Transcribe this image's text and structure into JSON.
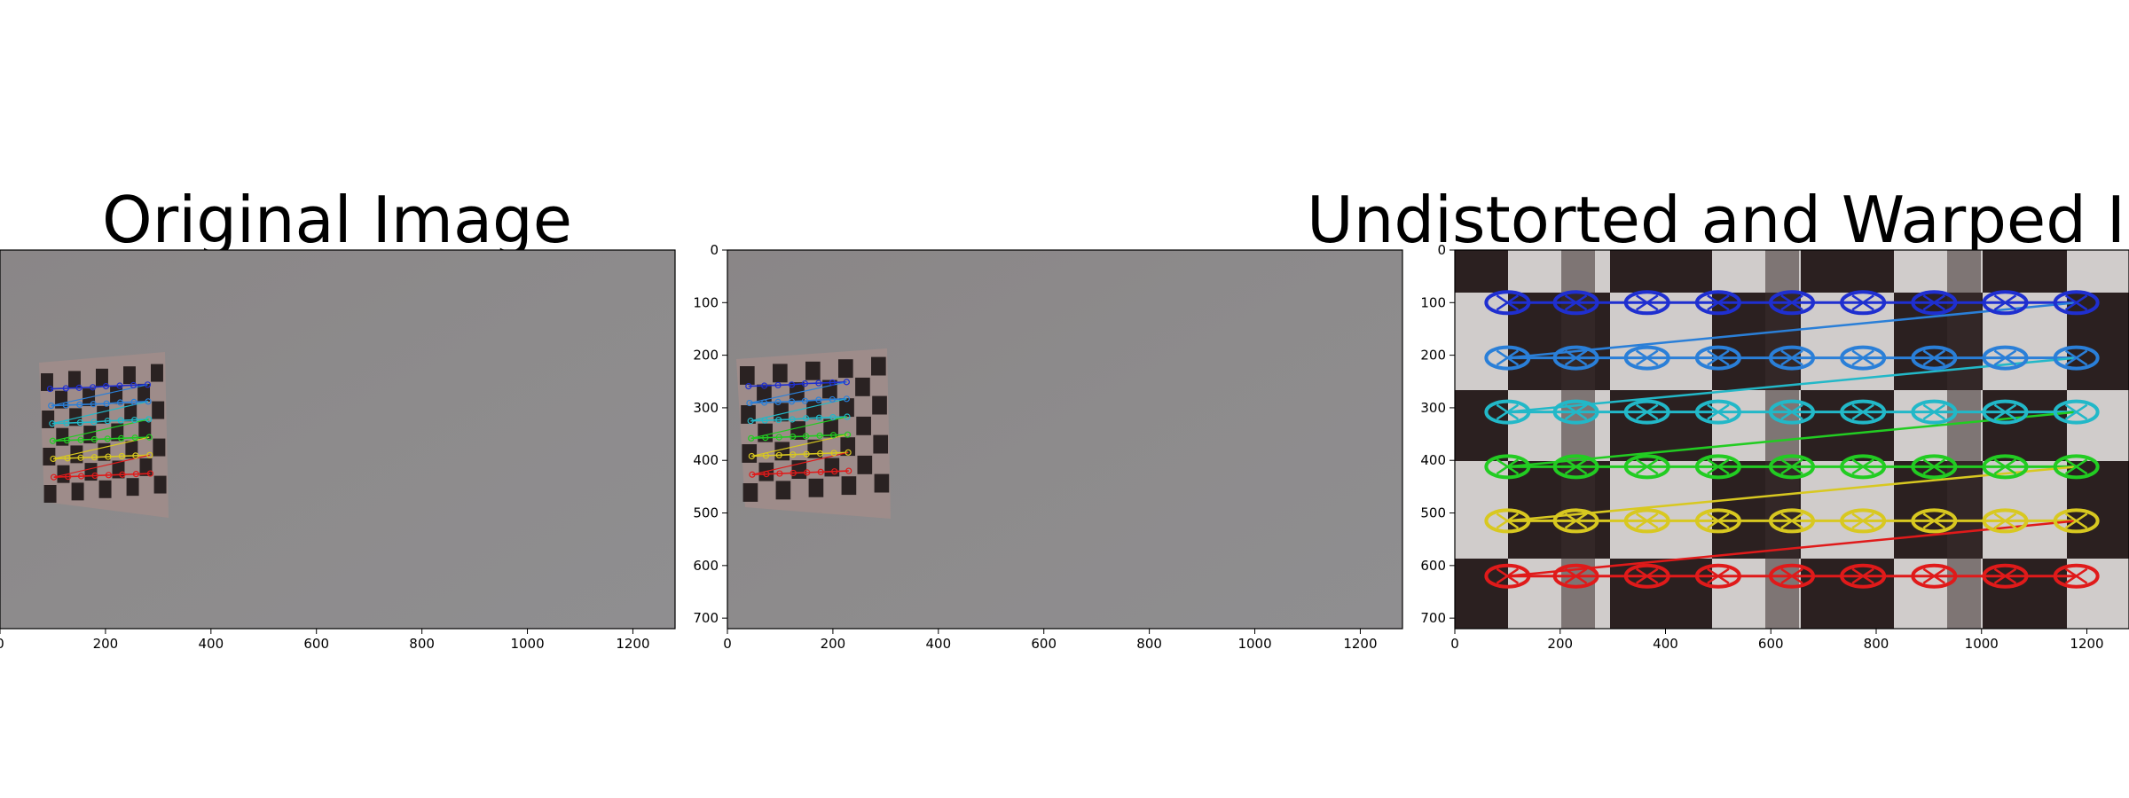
{
  "chart_data": [
    {
      "type": "image",
      "title": "Original Image",
      "xticks": [
        "0",
        "200",
        "400",
        "600",
        "800",
        "1000",
        "1200"
      ],
      "yticks": [],
      "xlim": [
        0,
        1280
      ],
      "ylim": [
        720,
        0
      ],
      "content": "photo of a gray wall with a small checkerboard calibration target on the left; detected chessboard corners drawn as colored polylines",
      "corner_rows": [
        {
          "color": "#1f2fd0",
          "points": [
            [
              95,
              264
            ],
            [
              125,
              263
            ],
            [
              150,
              262
            ],
            [
              176,
              261
            ],
            [
              201,
              259
            ],
            [
              227,
              258
            ],
            [
              253,
              257
            ],
            [
              280,
              256
            ]
          ]
        },
        {
          "color": "#2a7fd8",
          "points": [
            [
              97,
              296
            ],
            [
              125,
              295
            ],
            [
              151,
              294
            ],
            [
              177,
              293
            ],
            [
              202,
              292
            ],
            [
              228,
              290
            ],
            [
              254,
              289
            ],
            [
              281,
              288
            ]
          ]
        },
        {
          "color": "#22b8c8",
          "points": [
            [
              99,
              330
            ],
            [
              126,
              329
            ],
            [
              152,
              328
            ],
            [
              178,
              327
            ],
            [
              204,
              325
            ],
            [
              229,
              324
            ],
            [
              255,
              323
            ],
            [
              282,
              322
            ]
          ]
        },
        {
          "color": "#22cc22",
          "points": [
            [
              100,
              363
            ],
            [
              127,
              362
            ],
            [
              153,
              361
            ],
            [
              179,
              360
            ],
            [
              204,
              359
            ],
            [
              230,
              358
            ],
            [
              256,
              357
            ],
            [
              283,
              356
            ]
          ]
        },
        {
          "color": "#d8c820",
          "points": [
            [
              101,
              397
            ],
            [
              128,
              396
            ],
            [
              153,
              395
            ],
            [
              179,
              394
            ],
            [
              205,
              393
            ],
            [
              231,
              392
            ],
            [
              257,
              391
            ],
            [
              284,
              390
            ]
          ]
        },
        {
          "color": "#e01a1a",
          "points": [
            [
              102,
              432
            ],
            [
              129,
              431
            ],
            [
              154,
              430
            ],
            [
              180,
              429
            ],
            [
              206,
              428
            ],
            [
              232,
              427
            ],
            [
              258,
              426
            ],
            [
              285,
              425
            ]
          ]
        }
      ]
    },
    {
      "type": "image",
      "title": "",
      "xticks": [
        "0",
        "200",
        "400",
        "600",
        "800",
        "1000",
        "1200"
      ],
      "yticks": [
        "0",
        "100",
        "200",
        "300",
        "400",
        "500",
        "600",
        "700"
      ],
      "xlim": [
        0,
        1280
      ],
      "ylim": [
        720,
        0
      ],
      "content": "undistorted photo of the same wall and checkerboard target with detected corners",
      "corner_rows": [
        {
          "color": "#1f2fd0",
          "points": [
            [
              40,
              259
            ],
            [
              70,
              258
            ],
            [
              96,
              257
            ],
            [
              122,
              256
            ],
            [
              147,
              254
            ],
            [
              173,
              253
            ],
            [
              199,
              252
            ],
            [
              226,
              251
            ]
          ]
        },
        {
          "color": "#2a7fd8",
          "points": [
            [
              42,
              291
            ],
            [
              70,
              290
            ],
            [
              96,
              289
            ],
            [
              122,
              288
            ],
            [
              147,
              287
            ],
            [
              173,
              285
            ],
            [
              199,
              284
            ],
            [
              226,
              283
            ]
          ]
        },
        {
          "color": "#22b8c8",
          "points": [
            [
              44,
              325
            ],
            [
              71,
              324
            ],
            [
              97,
              323
            ],
            [
              123,
              322
            ],
            [
              149,
              320
            ],
            [
              174,
              319
            ],
            [
              200,
              318
            ],
            [
              227,
              317
            ]
          ]
        },
        {
          "color": "#22cc22",
          "points": [
            [
              45,
              358
            ],
            [
              72,
              357
            ],
            [
              98,
              356
            ],
            [
              124,
              355
            ],
            [
              149,
              354
            ],
            [
              175,
              353
            ],
            [
              201,
              352
            ],
            [
              228,
              351
            ]
          ]
        },
        {
          "color": "#d8c820",
          "points": [
            [
              46,
              392
            ],
            [
              73,
              391
            ],
            [
              98,
              390
            ],
            [
              124,
              389
            ],
            [
              150,
              388
            ],
            [
              176,
              387
            ],
            [
              202,
              386
            ],
            [
              229,
              385
            ]
          ]
        },
        {
          "color": "#e01a1a",
          "points": [
            [
              47,
              427
            ],
            [
              74,
              426
            ],
            [
              99,
              425
            ],
            [
              125,
              424
            ],
            [
              151,
              423
            ],
            [
              177,
              422
            ],
            [
              203,
              421
            ],
            [
              230,
              420
            ]
          ]
        }
      ]
    },
    {
      "type": "image",
      "title": "Undistorted and Warped Image",
      "xticks": [
        "0",
        "200",
        "400",
        "600",
        "800",
        "1000",
        "1200"
      ],
      "yticks": [
        "0",
        "100",
        "200",
        "300",
        "400",
        "500",
        "600",
        "700"
      ],
      "xlim": [
        0,
        1280
      ],
      "ylim": [
        720,
        0
      ],
      "content": "perspective-warped close-up of the checkerboard; corners connected row by row with diagonal connectors between rows",
      "corner_rows": [
        {
          "color": "#1f2fd0",
          "points": [
            [
              100,
              100
            ],
            [
              230,
              100
            ],
            [
              365,
              100
            ],
            [
              500,
              100
            ],
            [
              640,
              100
            ],
            [
              775,
              100
            ],
            [
              910,
              100
            ],
            [
              1045,
              100
            ],
            [
              1180,
              100
            ]
          ]
        },
        {
          "color": "#2a7fd8",
          "points": [
            [
              100,
              205
            ],
            [
              230,
              205
            ],
            [
              365,
              205
            ],
            [
              500,
              205
            ],
            [
              640,
              205
            ],
            [
              775,
              205
            ],
            [
              910,
              205
            ],
            [
              1045,
              205
            ],
            [
              1180,
              205
            ]
          ]
        },
        {
          "color": "#22b8c8",
          "points": [
            [
              100,
              308
            ],
            [
              230,
              308
            ],
            [
              365,
              308
            ],
            [
              500,
              308
            ],
            [
              640,
              308
            ],
            [
              775,
              308
            ],
            [
              910,
              308
            ],
            [
              1045,
              308
            ],
            [
              1180,
              308
            ]
          ]
        },
        {
          "color": "#22cc22",
          "points": [
            [
              100,
              412
            ],
            [
              230,
              412
            ],
            [
              365,
              412
            ],
            [
              500,
              412
            ],
            [
              640,
              412
            ],
            [
              775,
              412
            ],
            [
              910,
              412
            ],
            [
              1045,
              412
            ],
            [
              1180,
              412
            ]
          ]
        },
        {
          "color": "#d8c820",
          "points": [
            [
              100,
              515
            ],
            [
              230,
              515
            ],
            [
              365,
              515
            ],
            [
              500,
              515
            ],
            [
              640,
              515
            ],
            [
              775,
              515
            ],
            [
              910,
              515
            ],
            [
              1045,
              515
            ],
            [
              1180,
              515
            ]
          ]
        },
        {
          "color": "#e01a1a",
          "points": [
            [
              100,
              620
            ],
            [
              230,
              620
            ],
            [
              365,
              620
            ],
            [
              500,
              620
            ],
            [
              640,
              620
            ],
            [
              775,
              620
            ],
            [
              910,
              620
            ],
            [
              1045,
              620
            ],
            [
              1180,
              620
            ]
          ]
        }
      ]
    }
  ]
}
